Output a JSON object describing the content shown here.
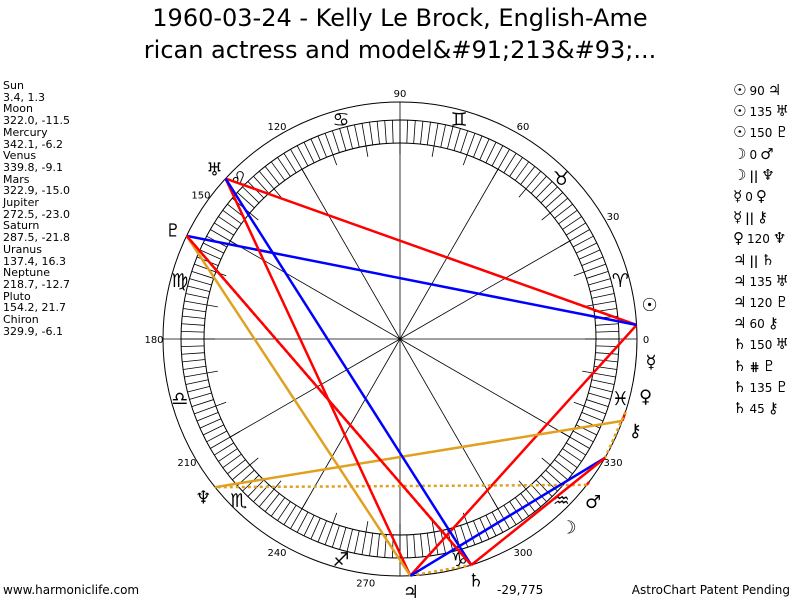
{
  "title_line1": "1960-03-24 - Kelly Le Brock, English-Ame",
  "title_line2": "rican actress and model&#91;213&#93;...",
  "footer_left": "www.harmoniclife.com",
  "footer_right": "AstroChart Patent Pending",
  "bottom_readout": "-29,775",
  "colors": {
    "hard": "#ff0000",
    "soft": "#0000ff",
    "trine": "#e0a020"
  },
  "degree_labels": [
    "0",
    "30",
    "60",
    "90",
    "120",
    "150",
    "180",
    "210",
    "240",
    "270",
    "300",
    "330"
  ],
  "signs": [
    "♈",
    "♉",
    "♊",
    "♋",
    "♌",
    "♍",
    "♎",
    "♏",
    "♐",
    "♑",
    "♒",
    "♓"
  ],
  "planets": [
    {
      "name": "Sun",
      "glyph": "☉",
      "pos": "3.4, 1.3",
      "lon": 3.4
    },
    {
      "name": "Moon",
      "glyph": "☽",
      "pos": "322.0, -11.5",
      "lon": 322.0
    },
    {
      "name": "Mercury",
      "glyph": "☿",
      "pos": "342.1, -6.2",
      "lon": 342.1
    },
    {
      "name": "Venus",
      "glyph": "♀",
      "pos": "339.8, -9.1",
      "lon": 339.8
    },
    {
      "name": "Mars",
      "glyph": "♂",
      "pos": "322.9, -15.0",
      "lon": 322.9
    },
    {
      "name": "Jupiter",
      "glyph": "♃",
      "pos": "272.5, -23.0",
      "lon": 272.5
    },
    {
      "name": "Saturn",
      "glyph": "♄",
      "pos": "287.5, -21.8",
      "lon": 287.5
    },
    {
      "name": "Uranus",
      "glyph": "♅",
      "pos": "137.4, 16.3",
      "lon": 137.4
    },
    {
      "name": "Neptune",
      "glyph": "♆",
      "pos": "218.7, -12.7",
      "lon": 218.7
    },
    {
      "name": "Pluto",
      "glyph": "♇",
      "pos": "154.2, 21.7",
      "lon": 154.2
    },
    {
      "name": "Chiron",
      "glyph": "⚷",
      "pos": "329.9, -6.1",
      "lon": 329.9
    }
  ],
  "aspects": [
    {
      "p1": "☉",
      "a": "90",
      "p2": "♃",
      "from": 0,
      "to": 5,
      "style": "hard"
    },
    {
      "p1": "☉",
      "a": "135",
      "p2": "♅",
      "from": 0,
      "to": 7,
      "style": "hard"
    },
    {
      "p1": "☉",
      "a": "150",
      "p2": "♇",
      "from": 0,
      "to": 9,
      "style": "soft"
    },
    {
      "p1": "☽",
      "a": "0",
      "p2": "♂",
      "from": 1,
      "to": 4,
      "style": "hard"
    },
    {
      "p1": "☽",
      "a": "||",
      "p2": "♆",
      "from": 1,
      "to": 8,
      "style": "trine-dot"
    },
    {
      "p1": "☿",
      "a": "0",
      "p2": "♀",
      "from": 2,
      "to": 3,
      "style": "hard"
    },
    {
      "p1": "☿",
      "a": "||",
      "p2": "⚷",
      "from": 2,
      "to": 10,
      "style": "trine-dot"
    },
    {
      "p1": "♀",
      "a": "120",
      "p2": "♆",
      "from": 3,
      "to": 8,
      "style": "trine"
    },
    {
      "p1": "♃",
      "a": "||",
      "p2": "♄",
      "from": 5,
      "to": 6,
      "style": "trine-dot"
    },
    {
      "p1": "♃",
      "a": "135",
      "p2": "♅",
      "from": 5,
      "to": 7,
      "style": "hard"
    },
    {
      "p1": "♃",
      "a": "120",
      "p2": "♇",
      "from": 5,
      "to": 9,
      "style": "trine"
    },
    {
      "p1": "♃",
      "a": "60",
      "p2": "⚷",
      "from": 5,
      "to": 10,
      "style": "soft"
    },
    {
      "p1": "♄",
      "a": "150",
      "p2": "♅",
      "from": 6,
      "to": 7,
      "style": "soft"
    },
    {
      "p1": "♄",
      "a": "⋕",
      "p2": "♇",
      "from": 6,
      "to": 9,
      "style": "hard-dot"
    },
    {
      "p1": "♄",
      "a": "135",
      "p2": "♇",
      "from": 6,
      "to": 9,
      "style": "hard"
    },
    {
      "p1": "♄",
      "a": "45",
      "p2": "⚷",
      "from": 6,
      "to": 10,
      "style": "hard"
    }
  ]
}
